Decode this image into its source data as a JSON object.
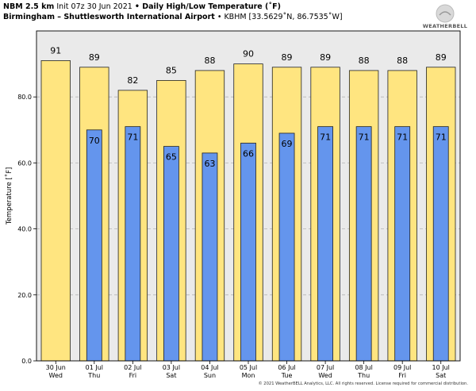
{
  "header": {
    "model": "NBM 2.5 km",
    "init": "Init 07z 30 Jun 2021",
    "product": "• Daily High/Low Temperature (˚F)",
    "station": "Birmingham – Shuttlesworth International Airport",
    "coords": "• KBHM [33.5629˚N, 86.7535˚W]"
  },
  "logo": {
    "text": "WEATHERBELL"
  },
  "copyright": "© 2021 WeatherBELL Analytics, LLC. All rights reserved. License required for commercial distribution.",
  "chart_data": {
    "type": "bar",
    "ylabel": "Temperature [˚F]",
    "ylim": [
      0,
      100
    ],
    "yticks": [
      "0.0",
      "20.0",
      "40.0",
      "60.0",
      "80.0"
    ],
    "categories": [
      "30 Jun",
      "01 Jul",
      "02 Jul",
      "03 Jul",
      "04 Jul",
      "05 Jul",
      "06 Jul",
      "07 Jul",
      "08 Jul",
      "09 Jul",
      "10 Jul"
    ],
    "day_names": [
      "Wed",
      "Thu",
      "Fri",
      "Sat",
      "Sun",
      "Mon",
      "Tue",
      "Wed",
      "Thu",
      "Fri",
      "Sat"
    ],
    "series": [
      {
        "values": [
          91,
          89,
          82,
          85,
          88,
          90,
          89,
          89,
          88,
          88,
          89
        ],
        "color": "#ffe580"
      },
      {
        "values": [
          null,
          70,
          71,
          65,
          63,
          66,
          69,
          71,
          71,
          71,
          71
        ],
        "color": "#6495ed"
      }
    ],
    "high_labels": [
      "91",
      "89",
      "82",
      "85",
      "88",
      "90",
      "89",
      "89",
      "88",
      "88",
      "89"
    ],
    "low_labels": [
      "",
      "70",
      "71",
      "65",
      "63",
      "66",
      "69",
      "71",
      "71",
      "71",
      "71"
    ],
    "grid": true,
    "background": "#eaeaea"
  }
}
